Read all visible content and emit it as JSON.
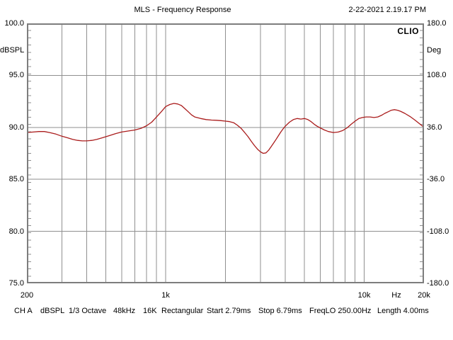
{
  "header": {
    "title": "MLS - Frequency Response",
    "timestamp": "2-22-2021 2.19.17 PM"
  },
  "branding": {
    "logo": "CLIO"
  },
  "colors": {
    "curve": "#aa1c1c",
    "grid": "#8f8f8f",
    "border": "#7d7d7d",
    "background": "#ffffff",
    "text": "#000000"
  },
  "status_bar": {
    "items": [
      "CH A",
      "dBSPL",
      "1/3 Octave",
      "48kHz",
      "16K",
      "Rectangular",
      "Start 2.79ms",
      "Stop 6.79ms",
      "FreqLO 250.00Hz",
      "Length 4.00ms"
    ]
  },
  "chart_data": {
    "type": "line",
    "title": "MLS - Frequency Response",
    "grid": true,
    "x": {
      "scale": "log",
      "min": 200,
      "max": 20000,
      "unit_label": "Hz",
      "tick_labels": [
        {
          "label": "200",
          "hz": 200
        },
        {
          "label": "1k",
          "hz": 1000
        },
        {
          "label": "10k",
          "hz": 10000
        },
        {
          "label": "Hz",
          "hz": null
        },
        {
          "label": "20k",
          "hz": 20000
        }
      ],
      "gridlines_hz": [
        300,
        400,
        500,
        600,
        700,
        800,
        900,
        1000,
        2000,
        3000,
        4000,
        5000,
        6000,
        7000,
        8000,
        9000,
        10000
      ]
    },
    "y_left": {
      "unit_label": "dBSPL",
      "min": 75.0,
      "max": 100.0,
      "major_step": 5.0,
      "tick_labels": [
        "100.0",
        "95.0",
        "90.0",
        "85.0",
        "80.0",
        "75.0"
      ]
    },
    "y_right": {
      "unit_label": "Deg",
      "min": -180.0,
      "max": 180.0,
      "major_step": 72.0,
      "tick_labels": [
        "180.0",
        "108.0",
        "36.0",
        "-36.0",
        "-108.0",
        "-180.0"
      ]
    },
    "series": [
      {
        "name": "CH A dBSPL",
        "color": "#aa1c1c",
        "points": [
          [
            200,
            89.5
          ],
          [
            215,
            89.55
          ],
          [
            230,
            89.6
          ],
          [
            245,
            89.6
          ],
          [
            260,
            89.5
          ],
          [
            280,
            89.35
          ],
          [
            300,
            89.15
          ],
          [
            320,
            89.0
          ],
          [
            340,
            88.85
          ],
          [
            360,
            88.75
          ],
          [
            380,
            88.7
          ],
          [
            400,
            88.7
          ],
          [
            425,
            88.75
          ],
          [
            450,
            88.85
          ],
          [
            480,
            89.0
          ],
          [
            520,
            89.2
          ],
          [
            560,
            89.4
          ],
          [
            600,
            89.55
          ],
          [
            650,
            89.65
          ],
          [
            700,
            89.75
          ],
          [
            750,
            89.9
          ],
          [
            800,
            90.15
          ],
          [
            850,
            90.5
          ],
          [
            900,
            91.0
          ],
          [
            950,
            91.5
          ],
          [
            1000,
            92.0
          ],
          [
            1050,
            92.2
          ],
          [
            1100,
            92.3
          ],
          [
            1150,
            92.25
          ],
          [
            1200,
            92.1
          ],
          [
            1250,
            91.8
          ],
          [
            1300,
            91.5
          ],
          [
            1350,
            91.2
          ],
          [
            1400,
            91.0
          ],
          [
            1500,
            90.85
          ],
          [
            1600,
            90.75
          ],
          [
            1700,
            90.7
          ],
          [
            1800,
            90.68
          ],
          [
            1900,
            90.65
          ],
          [
            2000,
            90.6
          ],
          [
            2100,
            90.55
          ],
          [
            2200,
            90.45
          ],
          [
            2300,
            90.2
          ],
          [
            2400,
            89.9
          ],
          [
            2500,
            89.5
          ],
          [
            2600,
            89.1
          ],
          [
            2700,
            88.65
          ],
          [
            2800,
            88.25
          ],
          [
            2900,
            87.9
          ],
          [
            3000,
            87.65
          ],
          [
            3100,
            87.5
          ],
          [
            3200,
            87.55
          ],
          [
            3300,
            87.8
          ],
          [
            3400,
            88.15
          ],
          [
            3500,
            88.5
          ],
          [
            3600,
            88.85
          ],
          [
            3700,
            89.2
          ],
          [
            3800,
            89.55
          ],
          [
            3900,
            89.85
          ],
          [
            4000,
            90.1
          ],
          [
            4200,
            90.5
          ],
          [
            4400,
            90.75
          ],
          [
            4600,
            90.85
          ],
          [
            4800,
            90.8
          ],
          [
            5000,
            90.85
          ],
          [
            5200,
            90.75
          ],
          [
            5400,
            90.55
          ],
          [
            5600,
            90.3
          ],
          [
            5800,
            90.1
          ],
          [
            6000,
            89.95
          ],
          [
            6300,
            89.75
          ],
          [
            6600,
            89.6
          ],
          [
            7000,
            89.5
          ],
          [
            7400,
            89.55
          ],
          [
            7800,
            89.7
          ],
          [
            8200,
            89.95
          ],
          [
            8600,
            90.3
          ],
          [
            9000,
            90.6
          ],
          [
            9400,
            90.85
          ],
          [
            9800,
            90.95
          ],
          [
            10200,
            91.0
          ],
          [
            10700,
            91.0
          ],
          [
            11200,
            90.95
          ],
          [
            11700,
            91.0
          ],
          [
            12200,
            91.15
          ],
          [
            12700,
            91.35
          ],
          [
            13200,
            91.5
          ],
          [
            13700,
            91.65
          ],
          [
            14200,
            91.7
          ],
          [
            14700,
            91.65
          ],
          [
            15200,
            91.55
          ],
          [
            16000,
            91.35
          ],
          [
            17000,
            91.05
          ],
          [
            18000,
            90.7
          ],
          [
            19000,
            90.35
          ],
          [
            20000,
            90.0
          ]
        ]
      }
    ]
  }
}
